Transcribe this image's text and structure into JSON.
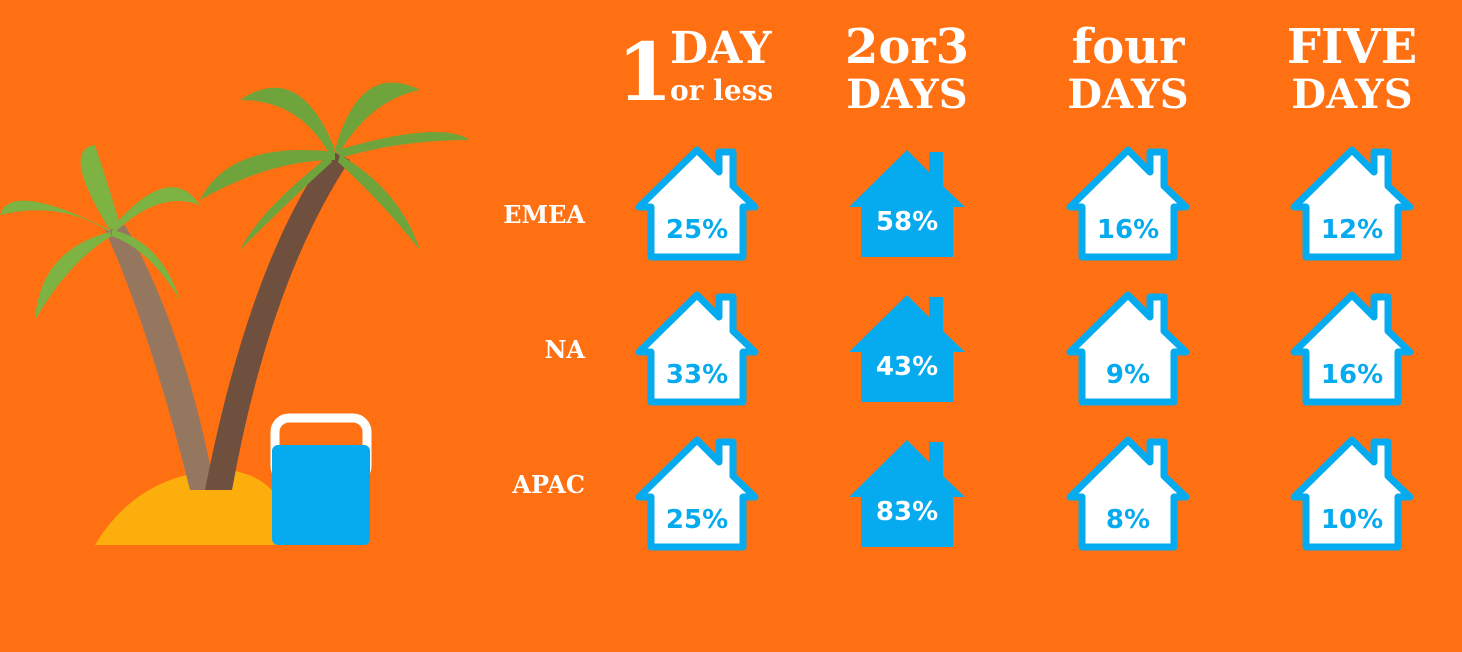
{
  "header": {
    "columns": [
      {
        "lines": [
          "1",
          "DAY",
          "or less"
        ]
      },
      {
        "lines": [
          "2or3",
          "DAYS"
        ]
      },
      {
        "lines": [
          "four",
          "DAYS"
        ]
      },
      {
        "lines": [
          "FIVE",
          "DAYS"
        ]
      }
    ]
  },
  "table": {
    "rows": [
      {
        "label": "EMEA",
        "values": [
          "25%",
          "58%",
          "16%",
          "12%"
        ]
      },
      {
        "label": "NA",
        "values": [
          "33%",
          "43%",
          "9%",
          "16%"
        ]
      },
      {
        "label": "APAC",
        "values": [
          "25%",
          "83%",
          "8%",
          "10%"
        ]
      }
    ]
  }
}
